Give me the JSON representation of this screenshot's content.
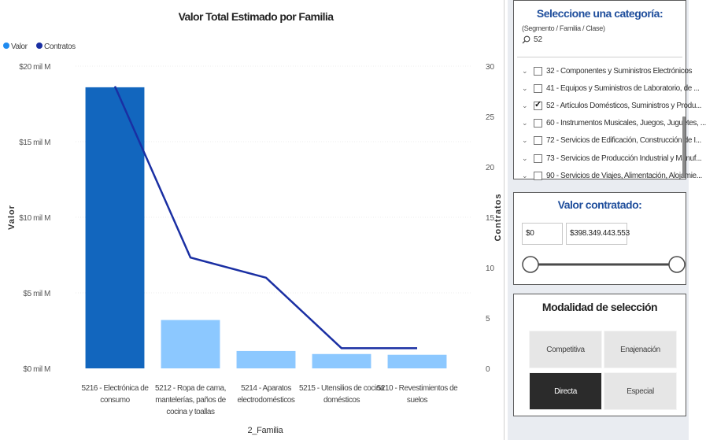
{
  "chart": {
    "title": "Valor Total Estimado por Familia",
    "legend": [
      {
        "label": "Valor",
        "color": "#1f8bf0"
      },
      {
        "label": "Contratos",
        "color": "#1a2fa3"
      }
    ],
    "y_axis_label": "Valor",
    "y2_axis_label": "Contratos",
    "x_axis_label": "2_Familia",
    "y_ticks": [
      "$20 mil M",
      "$15 mil M",
      "$10 mil M",
      "$5 mil M",
      "$0 mil M"
    ],
    "y2_ticks": [
      "30",
      "25",
      "20",
      "15",
      "10",
      "5",
      "0"
    ],
    "colors": {
      "bar_dark": "#1266be",
      "bar_light": "#8cc8ff",
      "line": "#1a2fa3"
    }
  },
  "chart_data": {
    "type": "bar",
    "categories": [
      [
        "5216 - Electrónica de",
        "consumo"
      ],
      [
        "5212 - Ropa de cama,",
        "mantelerías, paños de",
        "cocina y toallas"
      ],
      [
        "5214 - Aparatos",
        "electrodomésticos"
      ],
      [
        "5215 - Utensilios de cocina",
        "domésticos"
      ],
      [
        "5210 - Revestimientos de",
        "suelos"
      ]
    ],
    "series": [
      {
        "name": "Valor",
        "axis": "left",
        "type": "bar",
        "values": [
          18.6,
          3.2,
          1.15,
          0.95,
          0.9
        ],
        "unit": "mil M"
      },
      {
        "name": "Contratos",
        "axis": "right",
        "type": "line",
        "values": [
          28,
          11,
          9,
          2,
          2
        ]
      }
    ],
    "ylim": [
      0,
      20
    ],
    "y2lim": [
      0,
      30
    ],
    "highlight_index": 0,
    "grid": "horizontal"
  },
  "category_slicer": {
    "title": "Seleccione una categoría:",
    "subtitle": "(Segmento / Familia / Clase)",
    "search_value": "52",
    "items": [
      {
        "label": "32 - Componentes y Suministros Electrónicos",
        "checked": false
      },
      {
        "label": "41 - Equipos y Suministros de Laboratorio, de ...",
        "checked": false
      },
      {
        "label": "52 - Artículos Domésticos, Suministros y Produ...",
        "checked": true
      },
      {
        "label": "60 - Instrumentos Musicales, Juegos, Juguetes, ...",
        "checked": false
      },
      {
        "label": "72 - Servicios de Edificación, Construcción de I...",
        "checked": false
      },
      {
        "label": "73 - Servicios de Producción Industrial y Manuf...",
        "checked": false
      },
      {
        "label": "90 - Servicios de Viajes, Alimentación, Alojamie...",
        "checked": false
      }
    ]
  },
  "value_slicer": {
    "title": "Valor contratado:",
    "min_value": "$0",
    "max_value": "$398.349.443.553"
  },
  "mode_slicer": {
    "title": "Modalidad de selección",
    "options": [
      {
        "label": "Competitiva",
        "selected": false
      },
      {
        "label": "Enajenación",
        "selected": false
      },
      {
        "label": "Directa",
        "selected": true
      },
      {
        "label": "Especial",
        "selected": false
      }
    ]
  }
}
